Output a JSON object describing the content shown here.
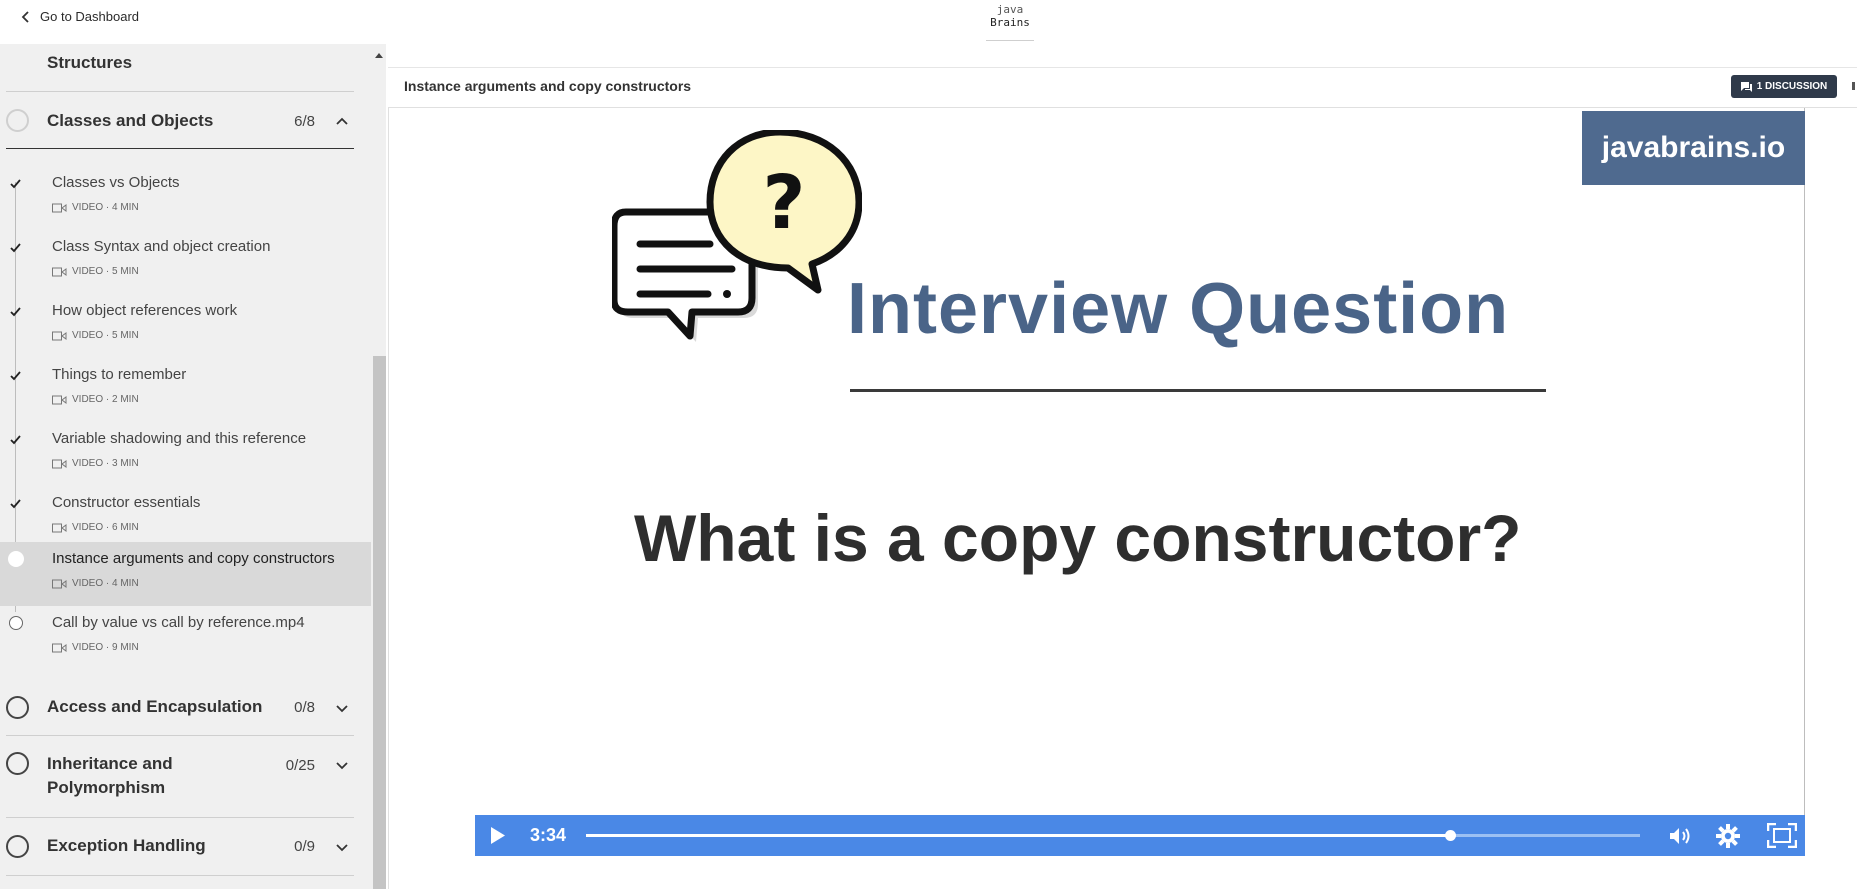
{
  "topbar": {
    "back_label": "Go to Dashboard",
    "logo_line1": "java",
    "logo_line2": "Brains"
  },
  "sidebar": {
    "previous_section_partial": "Structures",
    "current_section": {
      "title": "Classes and Objects",
      "count": "6/8"
    },
    "lessons": [
      {
        "name": "Classes vs Objects",
        "meta": "VIDEO · 4 MIN",
        "status": "done"
      },
      {
        "name": "Class Syntax and object creation",
        "meta": "VIDEO · 5 MIN",
        "status": "done"
      },
      {
        "name": "How object references work",
        "meta": "VIDEO · 5 MIN",
        "status": "done"
      },
      {
        "name": "Things to remember",
        "meta": "VIDEO · 2 MIN",
        "status": "done"
      },
      {
        "name": "Variable shadowing and this reference",
        "meta": "VIDEO · 3 MIN",
        "status": "done"
      },
      {
        "name": "Constructor essentials",
        "meta": "VIDEO · 6 MIN",
        "status": "done"
      },
      {
        "name": "Instance arguments and copy constructors",
        "meta": "VIDEO · 4 MIN",
        "status": "active"
      },
      {
        "name": "Call by value vs call by reference.mp4",
        "meta": "VIDEO · 9 MIN",
        "status": "todo"
      }
    ],
    "sections": [
      {
        "title": "Access and Encapsulation",
        "count": "0/8"
      },
      {
        "title_line1": "Inheritance and",
        "title_line2": "Polymorphism",
        "count": "0/25"
      },
      {
        "title": "Exception Handling",
        "count": "0/9"
      }
    ]
  },
  "main": {
    "title": "Instance arguments and copy constructors",
    "discussion_label": "1 DISCUSSION"
  },
  "slide": {
    "brand": "javabrains.io",
    "heading": "Interview Question",
    "question": "What is a copy constructor?"
  },
  "player": {
    "time": "3:34",
    "progress_fraction": 0.82,
    "accent": "#4a88e6"
  }
}
